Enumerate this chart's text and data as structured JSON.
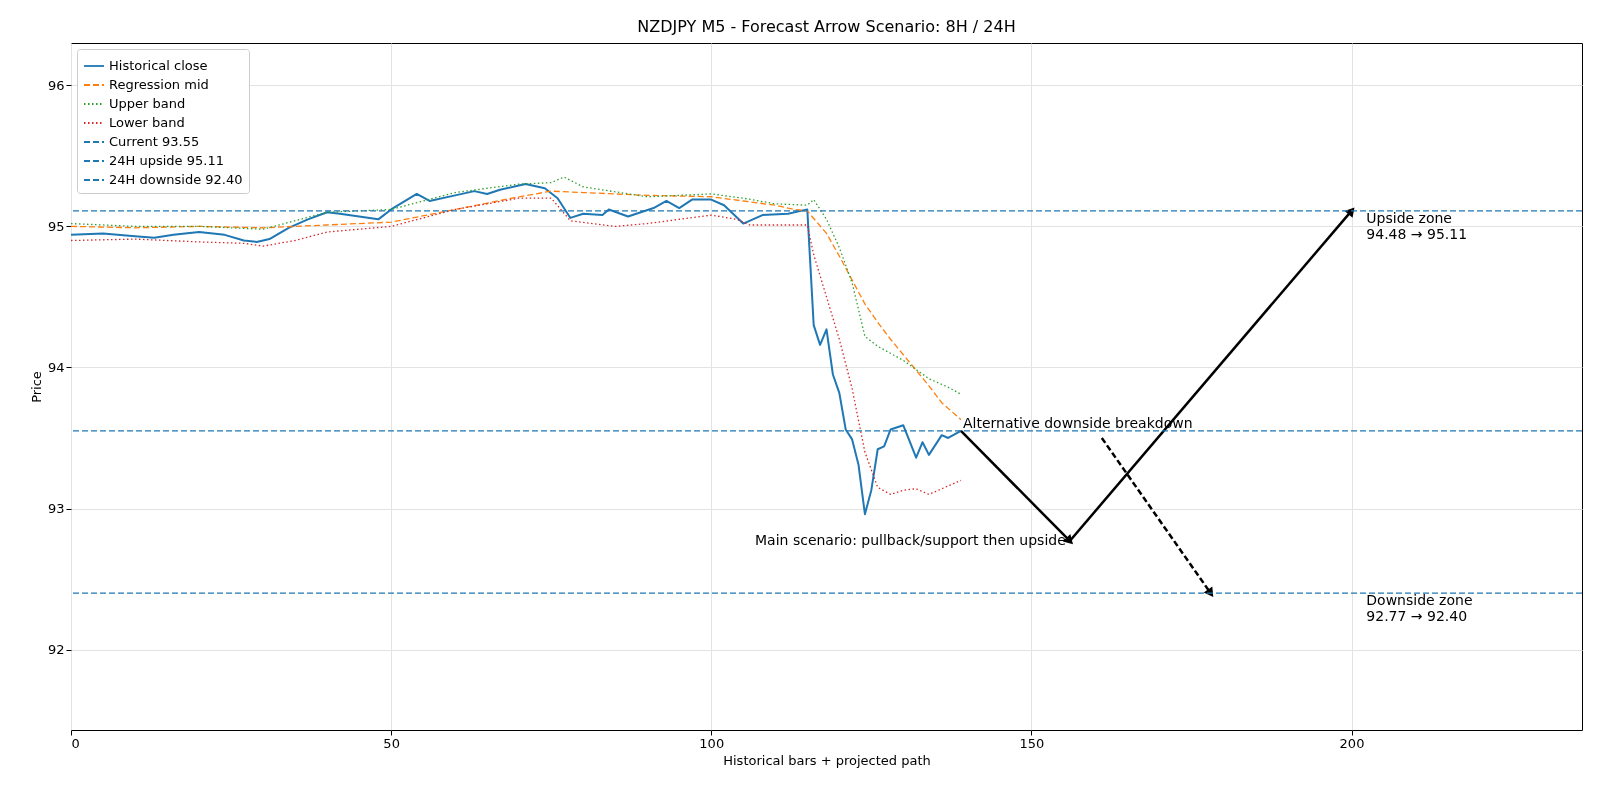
{
  "chart_data": {
    "type": "line",
    "title": "NZDJPY M5 - Forecast Arrow Scenario: 8H / 24H",
    "xlabel": "Historical bars + projected path",
    "ylabel": "Price",
    "xlim": [
      0,
      236
    ],
    "xticks": [
      0,
      50,
      100,
      150,
      200
    ],
    "ylim": [
      91.43,
      96.3
    ],
    "yticks": [
      92,
      93,
      94,
      95,
      96
    ],
    "grid": true,
    "legend": "top left",
    "series": [
      {
        "name": "Historical close",
        "color": "#1f77b4",
        "line_style": "solid",
        "x": [
          0,
          5,
          10,
          13,
          16,
          20,
          24,
          27,
          29,
          31,
          34,
          37,
          40,
          42,
          45,
          48,
          50,
          54,
          56,
          60,
          63,
          65,
          67,
          71,
          74,
          76,
          78,
          80,
          83,
          84,
          87,
          91,
          93,
          95,
          97,
          100,
          102,
          105,
          108,
          112,
          114,
          115,
          116,
          117,
          118,
          119,
          120,
          121,
          122,
          123,
          124,
          125,
          126,
          127,
          128,
          130,
          132,
          133,
          134,
          136,
          137,
          139
        ],
        "values": [
          94.94,
          94.95,
          94.93,
          94.92,
          94.94,
          94.96,
          94.94,
          94.9,
          94.89,
          94.91,
          94.99,
          95.05,
          95.1,
          95.09,
          95.07,
          95.05,
          95.12,
          95.23,
          95.18,
          95.22,
          95.25,
          95.23,
          95.26,
          95.3,
          95.27,
          95.2,
          95.06,
          95.09,
          95.08,
          95.12,
          95.07,
          95.13,
          95.18,
          95.13,
          95.19,
          95.19,
          95.15,
          95.02,
          95.08,
          95.09,
          95.11,
          95.12,
          94.3,
          94.16,
          94.27,
          93.95,
          93.82,
          93.56,
          93.49,
          93.31,
          92.96,
          93.13,
          93.42,
          93.44,
          93.56,
          93.59,
          93.36,
          93.47,
          93.38,
          93.52,
          93.5,
          93.55
        ]
      },
      {
        "name": "Regression mid",
        "color": "#ff7f0e",
        "line_style": "dashed",
        "x": [
          0,
          10,
          20,
          30,
          40,
          50,
          60,
          70,
          75,
          80,
          90,
          100,
          105,
          110,
          113,
          115,
          118,
          120,
          122,
          124,
          126,
          128,
          130,
          132,
          134,
          136,
          139
        ],
        "values": [
          95.0,
          94.99,
          95.0,
          94.99,
          95.01,
          95.03,
          95.12,
          95.21,
          95.25,
          95.24,
          95.22,
          95.21,
          95.18,
          95.15,
          95.12,
          95.11,
          94.95,
          94.79,
          94.62,
          94.45,
          94.32,
          94.2,
          94.09,
          93.98,
          93.87,
          93.75,
          93.63
        ]
      },
      {
        "name": "Upper band",
        "color": "#2ca02c",
        "line_style": "dotted",
        "x": [
          0,
          10,
          20,
          30,
          40,
          50,
          60,
          70,
          75,
          77,
          80,
          90,
          100,
          105,
          110,
          115,
          116,
          118,
          120,
          122,
          124,
          126,
          130,
          134,
          137,
          139
        ],
        "values": [
          95.02,
          95.0,
          95.0,
          94.98,
          95.1,
          95.12,
          95.24,
          95.3,
          95.31,
          95.35,
          95.28,
          95.21,
          95.23,
          95.2,
          95.16,
          95.15,
          95.19,
          95.05,
          94.85,
          94.6,
          94.22,
          94.15,
          94.05,
          93.92,
          93.86,
          93.81
        ]
      },
      {
        "name": "Lower band",
        "color": "#d62728",
        "line_style": "dotted",
        "x": [
          0,
          10,
          20,
          27,
          30,
          35,
          40,
          50,
          60,
          70,
          75,
          78,
          85,
          90,
          100,
          104,
          106,
          115,
          116,
          118,
          120,
          122,
          124,
          126,
          128,
          130,
          132,
          134,
          136,
          139
        ],
        "values": [
          94.9,
          94.91,
          94.89,
          94.88,
          94.86,
          94.9,
          94.96,
          95.0,
          95.12,
          95.2,
          95.2,
          95.04,
          95.0,
          95.02,
          95.08,
          95.05,
          95.01,
          95.01,
          94.8,
          94.5,
          94.2,
          93.85,
          93.4,
          93.15,
          93.1,
          93.13,
          93.14,
          93.1,
          93.14,
          93.2
        ]
      },
      {
        "type": "line",
        "color": "#000000",
        "line_style": "solid",
        "x": [
          139,
          156
        ],
        "values": [
          93.55,
          92.77
        ]
      },
      {
        "type": "line",
        "color": "#000000",
        "line_style": "solid",
        "x": [
          156,
          200
        ],
        "values": [
          92.77,
          95.11
        ]
      },
      {
        "type": "line",
        "color": "#000000",
        "line_style": "dashed",
        "x": [
          161,
          178
        ],
        "values": [
          93.5,
          92.4
        ]
      }
    ],
    "ref_lines": [
      {
        "axis": "y",
        "value": 93.55,
        "label": "Current 93.55",
        "color": "#1f77b4",
        "line_style": "dashed"
      },
      {
        "axis": "y",
        "value": 95.11,
        "label": "24H upside 95.11",
        "color": "#1f77b4",
        "line_style": "dashed"
      },
      {
        "axis": "y",
        "value": 92.4,
        "label": "24H downside 92.40",
        "color": "#1f77b4",
        "line_style": "dashed"
      }
    ],
    "annotations": [
      {
        "text": "Main scenario: pullback/support then upside",
        "x": 156,
        "y": 92.77
      },
      {
        "text": "Alternative downside breakdown",
        "x": 139,
        "y": 93.55
      },
      {
        "text": "Upside zone\n94.48 → 95.11",
        "x": 202,
        "y": 95.11
      },
      {
        "text": "Downside zone\n92.77 → 92.40",
        "x": 202,
        "y": 92.4
      }
    ]
  }
}
